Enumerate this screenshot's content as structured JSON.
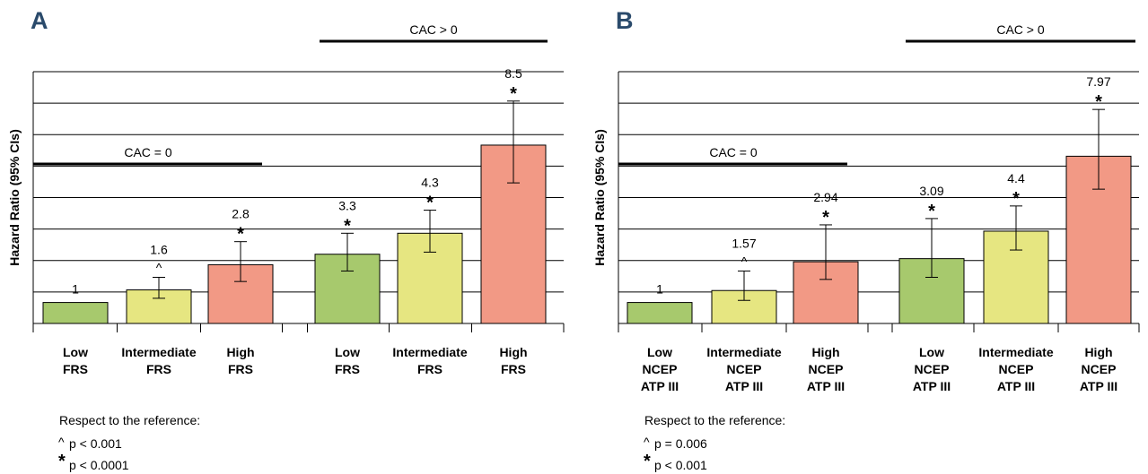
{
  "colors": {
    "low": "#a7c96d",
    "intermediate": "#e6e681",
    "high": "#f29985",
    "panel_label": "#2a4a6b",
    "grid": "#000000"
  },
  "chart_data": [
    {
      "panel_label": "A",
      "type": "bar",
      "ylabel": "Hazard Ratio (95% CIs)",
      "ylim": [
        0,
        12
      ],
      "y_grid_step": 1.5,
      "grid": true,
      "groups": [
        {
          "label": "CAC = 0",
          "category_indices": [
            0,
            1,
            2
          ]
        },
        {
          "label": "CAC > 0",
          "category_indices": [
            3,
            4,
            5
          ]
        }
      ],
      "categories": [
        "Low FRS",
        "Intermediate FRS",
        "High FRS",
        "Low FRS",
        "Intermediate FRS",
        "High FRS"
      ],
      "category_lines": [
        [
          "Low",
          "FRS"
        ],
        [
          "Intermediate",
          "FRS"
        ],
        [
          "High",
          "FRS"
        ],
        [
          "Low",
          "FRS"
        ],
        [
          "Intermediate",
          "FRS"
        ],
        [
          "High",
          "FRS"
        ]
      ],
      "risk_levels": [
        "low",
        "intermediate",
        "high",
        "low",
        "intermediate",
        "high"
      ],
      "values": [
        1,
        1.6,
        2.8,
        3.3,
        4.3,
        8.5
      ],
      "value_labels": [
        "1",
        "1.6",
        "2.8",
        "3.3",
        "4.3",
        "8.5"
      ],
      "ci_lower": [
        null,
        1.2,
        2.0,
        2.5,
        3.4,
        6.7
      ],
      "ci_upper": [
        null,
        2.2,
        3.9,
        4.3,
        5.4,
        10.6
      ],
      "significance": [
        "",
        "^",
        "*",
        "*",
        "*",
        "*"
      ],
      "footnote": {
        "title": "Respect to the reference:",
        "items": [
          {
            "symbol": "^",
            "text": "p < 0.001"
          },
          {
            "symbol": "*",
            "text": "p < 0.0001"
          }
        ]
      }
    },
    {
      "panel_label": "B",
      "type": "bar",
      "ylabel": "Hazard Ratio (95% CIs)",
      "ylim": [
        0,
        12
      ],
      "y_grid_step": 1.5,
      "grid": true,
      "groups": [
        {
          "label": "CAC = 0",
          "category_indices": [
            0,
            1,
            2
          ]
        },
        {
          "label": "CAC > 0",
          "category_indices": [
            3,
            4,
            5
          ]
        }
      ],
      "categories": [
        "Low NCEP ATP III",
        "Intermediate NCEP ATP III",
        "High NCEP ATP III",
        "Low NCEP ATP III",
        "Intermediate NCEP ATP III",
        "High NCEP ATP III"
      ],
      "category_lines": [
        [
          "Low",
          "NCEP",
          "ATP III"
        ],
        [
          "Intermediate",
          "NCEP",
          "ATP III"
        ],
        [
          "High",
          "NCEP",
          "ATP III"
        ],
        [
          "Low",
          "NCEP",
          "ATP III"
        ],
        [
          "Intermediate",
          "NCEP",
          "ATP III"
        ],
        [
          "High",
          "NCEP",
          "ATP III"
        ]
      ],
      "risk_levels": [
        "low",
        "intermediate",
        "high",
        "low",
        "intermediate",
        "high"
      ],
      "values": [
        1,
        1.57,
        2.94,
        3.09,
        4.4,
        7.97
      ],
      "value_labels": [
        "1",
        "1.57",
        "2.94",
        "3.09",
        "4.4",
        "7.97"
      ],
      "ci_lower": [
        null,
        1.1,
        2.1,
        2.2,
        3.5,
        6.4
      ],
      "ci_upper": [
        null,
        2.5,
        4.7,
        5.0,
        5.6,
        10.2
      ],
      "significance": [
        "",
        "^",
        "*",
        "*",
        "*",
        "*"
      ],
      "footnote": {
        "title": "Respect to the reference:",
        "items": [
          {
            "symbol": "^",
            "text": "p = 0.006"
          },
          {
            "symbol": "*",
            "text": "p < 0.001"
          }
        ]
      }
    }
  ]
}
